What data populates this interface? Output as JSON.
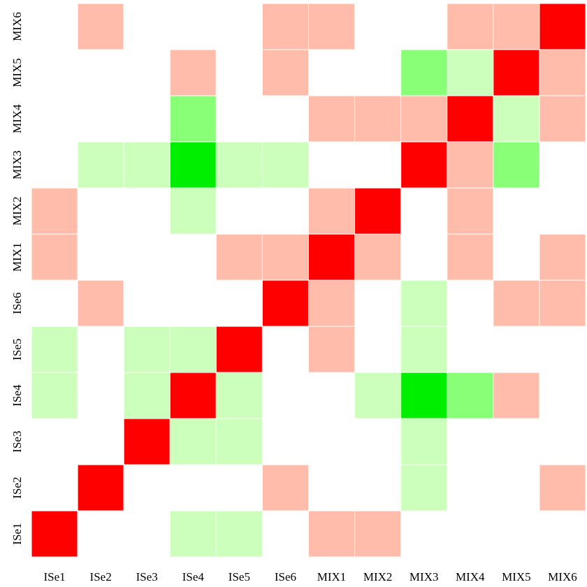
{
  "chart_data": {
    "type": "heatmap",
    "title": "",
    "xlabel": "",
    "ylabel": "",
    "x_categories": [
      "ISe1",
      "ISe2",
      "ISe3",
      "ISe4",
      "ISe5",
      "ISe6",
      "MIX1",
      "MIX2",
      "MIX3",
      "MIX4",
      "MIX5",
      "MIX6"
    ],
    "y_categories": [
      "ISe1",
      "ISe2",
      "ISe3",
      "ISe4",
      "ISe5",
      "ISe6",
      "MIX1",
      "MIX2",
      "MIX3",
      "MIX4",
      "MIX5",
      "MIX6"
    ],
    "value_scale": {
      "2": "#ff0000",
      "1": "#ffbcaa",
      "0": "#ffffff",
      "-1": "#ccffbb",
      "-2": "#88ff77",
      "-3": "#00ee00"
    },
    "rows": [
      {
        "y": "ISe1",
        "values": [
          2,
          0,
          0,
          -1,
          -1,
          0,
          1,
          1,
          0,
          0,
          0,
          0
        ]
      },
      {
        "y": "ISe2",
        "values": [
          0,
          2,
          0,
          0,
          0,
          1,
          0,
          0,
          -1,
          0,
          0,
          1
        ]
      },
      {
        "y": "ISe3",
        "values": [
          0,
          0,
          2,
          -1,
          -1,
          0,
          0,
          0,
          -1,
          0,
          0,
          0
        ]
      },
      {
        "y": "ISe4",
        "values": [
          -1,
          0,
          -1,
          2,
          -1,
          0,
          0,
          -1,
          -3,
          -2,
          1,
          0
        ]
      },
      {
        "y": "ISe5",
        "values": [
          -1,
          0,
          -1,
          -1,
          2,
          0,
          1,
          0,
          -1,
          0,
          0,
          0
        ]
      },
      {
        "y": "ISe6",
        "values": [
          0,
          1,
          0,
          0,
          0,
          2,
          1,
          0,
          -1,
          0,
          1,
          1
        ]
      },
      {
        "y": "MIX1",
        "values": [
          1,
          0,
          0,
          0,
          1,
          1,
          2,
          1,
          0,
          1,
          0,
          1
        ]
      },
      {
        "y": "MIX2",
        "values": [
          1,
          0,
          0,
          -1,
          0,
          0,
          1,
          2,
          0,
          1,
          0,
          0
        ]
      },
      {
        "y": "MIX3",
        "values": [
          0,
          -1,
          -1,
          -3,
          -1,
          -1,
          0,
          0,
          2,
          1,
          -2,
          0
        ]
      },
      {
        "y": "MIX4",
        "values": [
          0,
          0,
          0,
          -2,
          0,
          0,
          1,
          1,
          1,
          2,
          -1,
          1
        ]
      },
      {
        "y": "MIX5",
        "values": [
          0,
          0,
          0,
          1,
          0,
          1,
          0,
          0,
          -2,
          -1,
          2,
          1
        ]
      },
      {
        "y": "MIX6",
        "values": [
          0,
          1,
          0,
          0,
          0,
          1,
          1,
          0,
          0,
          1,
          1,
          2
        ]
      }
    ]
  }
}
